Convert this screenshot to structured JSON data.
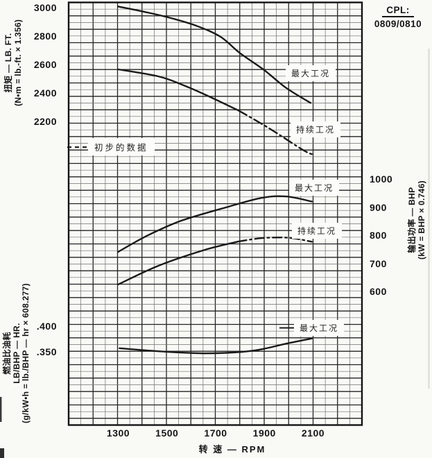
{
  "cpl_note": {
    "title": "CPL:",
    "value": "0809/0810"
  },
  "annotations": {
    "torque_max": "最大工况",
    "torque_cont": "持续工况",
    "power_max": "最大工况",
    "power_cont": "持续工况",
    "fuel_max": "最大工况",
    "preliminary": "初步的数据"
  },
  "chart_data": {
    "type": "line",
    "grid": "on",
    "x_axis": {
      "label": "转  速 — RPM",
      "ticks": [
        1300,
        1500,
        1700,
        1900,
        2100
      ]
    },
    "y_axes": [
      {
        "id": "torque",
        "side": "left",
        "label_cn": "扭矩 — LB. FT.",
        "conversion": "(N•m = lb.-ft. × 1.356)",
        "ticks": [
          "3000",
          "2800",
          "2600",
          "2400",
          "2200"
        ]
      },
      {
        "id": "power",
        "side": "right",
        "label_cn": "输出功率 — BHP",
        "conversion": "(kW = BHP × 0.746)",
        "ticks": [
          "1000",
          "900",
          "800",
          "700",
          "600"
        ]
      },
      {
        "id": "fuel",
        "side": "left",
        "label_cn": "燃油比油耗",
        "label_unit": "LB/BHP — HR.",
        "conversion": "(g/kW•h = lb./BHP — hr × 608.277)",
        "ticks": [
          ".400",
          ".350"
        ]
      }
    ],
    "series": [
      {
        "name": "扭矩 最大工况 (max torque, lb-ft)",
        "axis": "torque",
        "style": "solid",
        "points": [
          [
            1300,
            3008
          ],
          [
            1420,
            2966
          ],
          [
            1520,
            2925
          ],
          [
            1620,
            2873
          ],
          [
            1720,
            2795
          ],
          [
            1800,
            2680
          ],
          [
            1900,
            2560
          ],
          [
            1990,
            2435
          ],
          [
            2090,
            2330
          ]
        ]
      },
      {
        "name": "扭矩 持续工况 (continuous torque, lb-ft)",
        "axis": "torque",
        "style": "solid",
        "points": [
          [
            1300,
            2566
          ],
          [
            1464,
            2517
          ],
          [
            1560,
            2460
          ],
          [
            1660,
            2386
          ],
          [
            1795,
            2276
          ]
        ]
      },
      {
        "name": "扭矩 持续工况 初步数据段 (continuous torque, preliminary)",
        "axis": "torque",
        "style": "dashdot",
        "points": [
          [
            1795,
            2276
          ],
          [
            1920,
            2151
          ],
          [
            2063,
            1995
          ],
          [
            2106,
            1966
          ]
        ]
      },
      {
        "name": "输出功率 最大工况 (max power, BHP)",
        "axis": "power",
        "style": "solid",
        "points": [
          [
            1300,
            741
          ],
          [
            1418,
            798
          ],
          [
            1560,
            852
          ],
          [
            1750,
            901
          ],
          [
            1890,
            933
          ],
          [
            1990,
            938
          ],
          [
            2095,
            920
          ]
        ]
      },
      {
        "name": "输出功率 持续工况 (continuous power, BHP)",
        "axis": "power",
        "style": "solid",
        "points": [
          [
            1300,
            625
          ],
          [
            1464,
            691
          ],
          [
            1655,
            748
          ],
          [
            1790,
            777
          ]
        ]
      },
      {
        "name": "输出功率 持续工况 初步数据段 (continuous power, preliminary)",
        "axis": "power",
        "style": "dashdot",
        "points": [
          [
            1790,
            777
          ],
          [
            1890,
            790
          ],
          [
            2000,
            791
          ],
          [
            2095,
            777
          ]
        ]
      },
      {
        "name": "燃油比油耗 最大工况 (fuel rate, lb/BHP-hr)",
        "axis": "fuel",
        "style": "solid",
        "points": [
          [
            1305,
            0.357
          ],
          [
            1470,
            0.351
          ],
          [
            1660,
            0.347
          ],
          [
            1850,
            0.352
          ],
          [
            1990,
            0.366
          ],
          [
            2095,
            0.376
          ]
        ]
      }
    ],
    "colors": {
      "ink": "#1a1a1a",
      "grid_minor": "#6e6e6e",
      "grid_major": "#222222"
    }
  }
}
